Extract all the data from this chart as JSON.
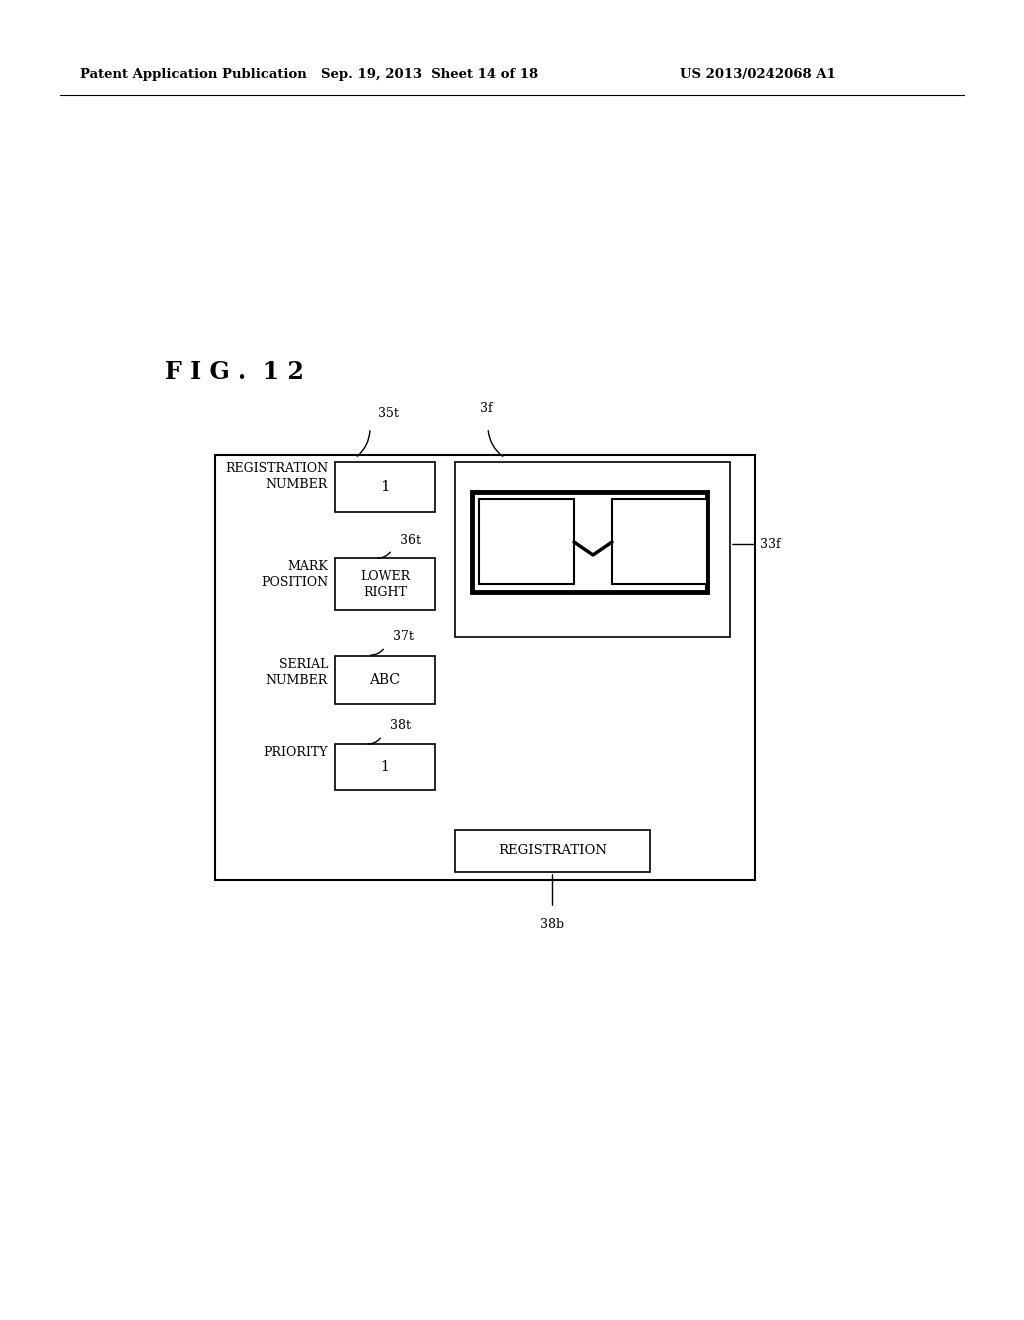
{
  "bg_color": "#ffffff",
  "header_left": "Patent Application Publication",
  "header_center": "Sep. 19, 2013  Sheet 14 of 18",
  "header_right": "US 2013/0242068 A1",
  "fig_label": "F I G .  1 2",
  "label_35t": "35t",
  "label_3f": "3f",
  "label_36t": "36t",
  "label_37t": "37t",
  "label_38t": "38t",
  "label_33f": "33f",
  "label_38b": "38b",
  "reg_num_label": "REGISTRATION\nNUMBER",
  "reg_num_value": "1",
  "mark_pos_label": "MARK\nPOSITION",
  "mark_pos_value": "LOWER\nRIGHT",
  "serial_num_label": "SERIAL\nNUMBER",
  "serial_num_value": "ABC",
  "priority_label": "PRIORITY",
  "priority_value": "1",
  "reg_button": "REGISTRATION"
}
